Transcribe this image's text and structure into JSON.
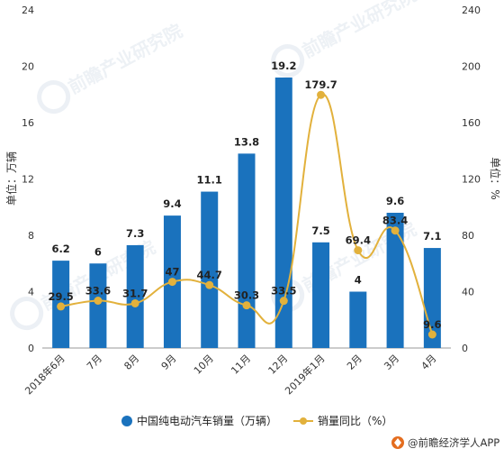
{
  "chart_data": {
    "type": "bar",
    "categories": [
      "2018年6月",
      "7月",
      "8月",
      "9月",
      "10月",
      "11月",
      "12月",
      "2019年1月",
      "2月",
      "3月",
      "4月"
    ],
    "series": [
      {
        "name": "中国纯电动汽车销量（万辆）",
        "type": "bar",
        "axis": "left",
        "color": "#1a72bd",
        "values": [
          6.2,
          6,
          7.3,
          9.4,
          11.1,
          13.8,
          19.2,
          7.5,
          4,
          9.6,
          7.1
        ],
        "labels": [
          "6.2",
          "6",
          "7.3",
          "9.4",
          "11.1",
          "13.8",
          "19.2",
          "7.5",
          "4",
          "9.6",
          "7.1"
        ]
      },
      {
        "name": "销量同比（%）",
        "type": "line",
        "axis": "right",
        "color": "#e2b13c",
        "values": [
          29.5,
          33.6,
          31.7,
          47,
          44.7,
          30.3,
          33.5,
          179.7,
          69.4,
          83.4,
          9.6
        ],
        "labels": [
          "29.5",
          "33.6",
          "31.7",
          "47",
          "44.7",
          "30.3",
          "33.5",
          "179.7",
          "69.4",
          "83.4",
          "9.6"
        ]
      }
    ],
    "ylabel": "单位：万辆",
    "y2label": "单位：%",
    "ylim": [
      0,
      24
    ],
    "yticks": [
      "0",
      "4",
      "8",
      "12",
      "16",
      "20",
      "24"
    ],
    "y2lim": [
      0,
      240
    ],
    "y2ticks": [
      "0",
      "40",
      "80",
      "120",
      "160",
      "200",
      "240"
    ],
    "legend_position": "bottom",
    "grid": false
  },
  "watermark": {
    "text": "前瞻产业研究院",
    "color": "#dfe6ee"
  },
  "footer": {
    "logo_icon": "qianzhan-logo-icon",
    "text": "@前瞻经济学人APP"
  }
}
